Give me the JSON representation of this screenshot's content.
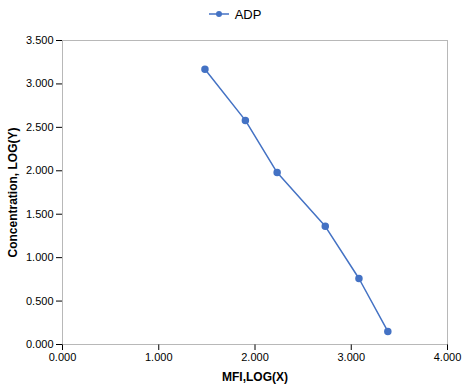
{
  "chart_data": {
    "type": "line",
    "xlabel": "MFI,LOG(X)",
    "ylabel": "Concentration, LOG(Y)",
    "x": [
      1.48,
      1.9,
      2.23,
      2.73,
      3.08,
      3.38
    ],
    "series": [
      {
        "name": "ADP",
        "color": "#4472C4",
        "marker": "circle",
        "values": [
          3.17,
          2.58,
          1.98,
          1.36,
          0.76,
          0.15
        ]
      }
    ],
    "xlim": [
      0.0,
      4.0
    ],
    "ylim": [
      0.0,
      3.5
    ],
    "xticks": [
      {
        "value": 0.0,
        "label": "0.000"
      },
      {
        "value": 1.0,
        "label": "1.000"
      },
      {
        "value": 2.0,
        "label": "2.000"
      },
      {
        "value": 3.0,
        "label": "3.000"
      },
      {
        "value": 4.0,
        "label": "4.000"
      }
    ],
    "yticks": [
      {
        "value": 0.0,
        "label": "0.000"
      },
      {
        "value": 0.5,
        "label": "0.500"
      },
      {
        "value": 1.0,
        "label": "1.000"
      },
      {
        "value": 1.5,
        "label": "1.500"
      },
      {
        "value": 2.0,
        "label": "2.000"
      },
      {
        "value": 2.5,
        "label": "2.500"
      },
      {
        "value": 3.0,
        "label": "3.000"
      },
      {
        "value": 3.5,
        "label": "3.500"
      }
    ],
    "grid": false,
    "legend": "top"
  }
}
